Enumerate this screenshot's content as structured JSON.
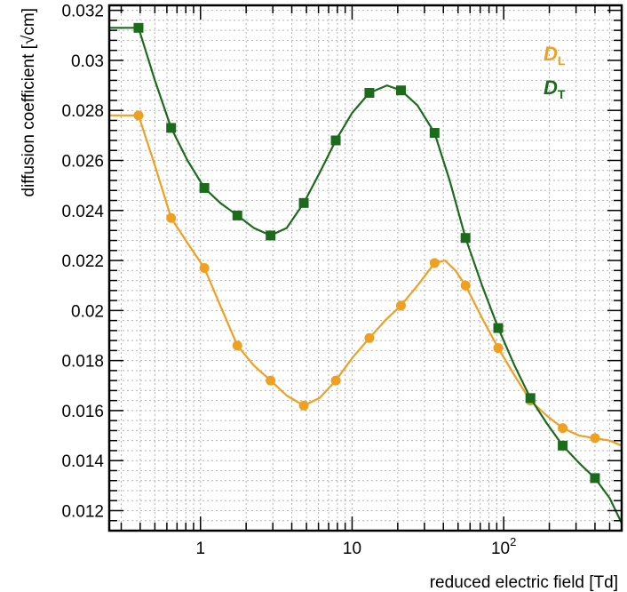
{
  "chart_data": {
    "type": "line",
    "title": "",
    "xlabel": "reduced electric field [Td]",
    "ylabel": "diffusion coefficient [√cm]",
    "xscale": "log",
    "xlim": [
      0.25,
      600
    ],
    "ylim": [
      0.0112,
      0.0322
    ],
    "grid": true,
    "legend_position": "top-right",
    "x_ticks": [
      {
        "value": 1,
        "label": "1"
      },
      {
        "value": 10,
        "label": "10"
      },
      {
        "value": 100,
        "label": "10",
        "sup": "2"
      }
    ],
    "y_ticks": [
      {
        "value": 0.012,
        "label": "0.012"
      },
      {
        "value": 0.014,
        "label": "0.014"
      },
      {
        "value": 0.016,
        "label": "0.016"
      },
      {
        "value": 0.018,
        "label": "0.018"
      },
      {
        "value": 0.02,
        "label": "0.02"
      },
      {
        "value": 0.022,
        "label": "0.022"
      },
      {
        "value": 0.024,
        "label": "0.024"
      },
      {
        "value": 0.026,
        "label": "0.026"
      },
      {
        "value": 0.028,
        "label": "0.028"
      },
      {
        "value": 0.03,
        "label": "0.03"
      },
      {
        "value": 0.032,
        "label": "0.032"
      }
    ],
    "series": [
      {
        "name": "D",
        "subscript": "L",
        "color": "#f0a020",
        "marker": "circle",
        "points": [
          [
            0.39,
            0.0278
          ],
          [
            0.64,
            0.0237
          ],
          [
            1.06,
            0.0217
          ],
          [
            1.75,
            0.0186
          ],
          [
            2.9,
            0.0172
          ],
          [
            4.8,
            0.0162
          ],
          [
            7.8,
            0.0172
          ],
          [
            13,
            0.0189
          ],
          [
            21,
            0.0202
          ],
          [
            35,
            0.0219
          ],
          [
            56,
            0.021
          ],
          [
            92,
            0.0185
          ],
          [
            150,
            0.0164
          ],
          [
            245,
            0.0153
          ],
          [
            400,
            0.0149
          ]
        ],
        "curve": [
          [
            0.25,
            0.0278
          ],
          [
            0.39,
            0.0278
          ],
          [
            0.5,
            0.0258
          ],
          [
            0.64,
            0.0237
          ],
          [
            0.82,
            0.0227
          ],
          [
            1.06,
            0.0217
          ],
          [
            1.35,
            0.0202
          ],
          [
            1.75,
            0.0186
          ],
          [
            2.25,
            0.0178
          ],
          [
            2.9,
            0.0172
          ],
          [
            3.7,
            0.0166
          ],
          [
            4.8,
            0.0162
          ],
          [
            6.1,
            0.0165
          ],
          [
            7.8,
            0.0172
          ],
          [
            10,
            0.0181
          ],
          [
            13,
            0.0189
          ],
          [
            16.5,
            0.0196
          ],
          [
            21,
            0.0202
          ],
          [
            27,
            0.021
          ],
          [
            35,
            0.0219
          ],
          [
            41,
            0.022
          ],
          [
            48,
            0.0216
          ],
          [
            56,
            0.021
          ],
          [
            72,
            0.0197
          ],
          [
            92,
            0.0185
          ],
          [
            118,
            0.0174
          ],
          [
            150,
            0.0164
          ],
          [
            192,
            0.0158
          ],
          [
            245,
            0.0153
          ],
          [
            315,
            0.015
          ],
          [
            400,
            0.0149
          ],
          [
            500,
            0.0148
          ],
          [
            600,
            0.0146
          ]
        ]
      },
      {
        "name": "D",
        "subscript": "T",
        "color": "#1c6b1c",
        "marker": "square",
        "points": [
          [
            0.39,
            0.0313
          ],
          [
            0.64,
            0.0273
          ],
          [
            1.06,
            0.0249
          ],
          [
            1.75,
            0.0238
          ],
          [
            2.9,
            0.023
          ],
          [
            4.8,
            0.0243
          ],
          [
            7.8,
            0.0268
          ],
          [
            13,
            0.0287
          ],
          [
            21,
            0.0288
          ],
          [
            35,
            0.0271
          ],
          [
            56,
            0.0229
          ],
          [
            92,
            0.0193
          ],
          [
            150,
            0.0165
          ],
          [
            245,
            0.0146
          ],
          [
            400,
            0.0133
          ]
        ],
        "curve": [
          [
            0.25,
            0.0313
          ],
          [
            0.39,
            0.0313
          ],
          [
            0.5,
            0.0292
          ],
          [
            0.64,
            0.0273
          ],
          [
            0.82,
            0.026
          ],
          [
            1.06,
            0.0249
          ],
          [
            1.35,
            0.0243
          ],
          [
            1.75,
            0.0238
          ],
          [
            2.25,
            0.0233
          ],
          [
            2.9,
            0.023
          ],
          [
            3.7,
            0.0233
          ],
          [
            4.8,
            0.0243
          ],
          [
            6.1,
            0.0255
          ],
          [
            7.8,
            0.0268
          ],
          [
            10,
            0.0279
          ],
          [
            13,
            0.0287
          ],
          [
            17,
            0.029
          ],
          [
            21,
            0.0288
          ],
          [
            27,
            0.0282
          ],
          [
            35,
            0.0271
          ],
          [
            44,
            0.0252
          ],
          [
            56,
            0.0229
          ],
          [
            72,
            0.021
          ],
          [
            92,
            0.0193
          ],
          [
            118,
            0.0178
          ],
          [
            150,
            0.0165
          ],
          [
            192,
            0.0155
          ],
          [
            245,
            0.0146
          ],
          [
            315,
            0.0139
          ],
          [
            400,
            0.0133
          ],
          [
            500,
            0.0125
          ],
          [
            600,
            0.0115
          ]
        ]
      }
    ]
  }
}
